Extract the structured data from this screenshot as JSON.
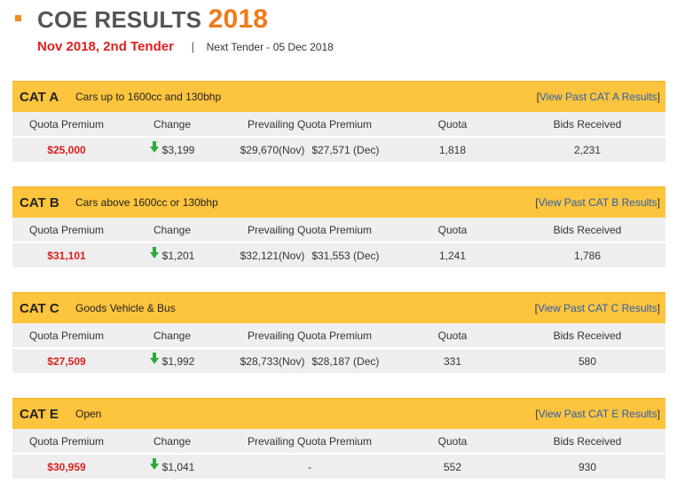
{
  "header": {
    "title": "COE RESULTS",
    "year": "2018",
    "tender": "Nov 2018, 2nd Tender",
    "separator": "|",
    "next_tender": "Next Tender - 05 Dec 2018"
  },
  "columns": {
    "quota_premium": "Quota Premium",
    "change": "Change",
    "prevailing": "Prevailing Quota Premium",
    "quota": "Quota",
    "bids": "Bids Received"
  },
  "categories": [
    {
      "code": "CAT A",
      "description": "Cars up to 1600cc and 130bhp",
      "link_open": "[",
      "link": "View Past CAT A Results",
      "link_close": "]",
      "premium": "$25,000",
      "change": "$3,199",
      "change_direction": "down",
      "prevailing_nov": "$29,670(Nov)",
      "prevailing_dec": "$27,571 (Dec)",
      "quota": "1,818",
      "bids": "2,231"
    },
    {
      "code": "CAT B",
      "description": "Cars above 1600cc or 130bhp",
      "link_open": "[",
      "link": "View Past CAT B Results",
      "link_close": "]",
      "premium": "$31,101",
      "change": "$1,201",
      "change_direction": "down",
      "prevailing_nov": "$32,121(Nov)",
      "prevailing_dec": "$31,553 (Dec)",
      "quota": "1,241",
      "bids": "1,786"
    },
    {
      "code": "CAT C",
      "description": "Goods Vehicle & Bus",
      "link_open": "[",
      "link": "View Past CAT C Results",
      "link_close": "]",
      "premium": "$27,509",
      "change": "$1,992",
      "change_direction": "down",
      "prevailing_nov": "$28,733(Nov)",
      "prevailing_dec": "$28,187 (Dec)",
      "quota": "331",
      "bids": "580"
    },
    {
      "code": "CAT E",
      "description": "Open",
      "link_open": "[",
      "link": "View Past CAT E Results",
      "link_close": "]",
      "premium": "$30,959",
      "change": "$1,041",
      "change_direction": "down",
      "prevailing_nov": "-",
      "prevailing_dec": "",
      "quota": "552",
      "bids": "930"
    }
  ],
  "colors": {
    "accent_orange": "#f07a17",
    "tender_red": "#e02020",
    "category_bar": "#fdc43d",
    "premium_red": "#d91e1e",
    "link_blue": "#2a5db0",
    "arrow_green": "#2eaa3a"
  }
}
